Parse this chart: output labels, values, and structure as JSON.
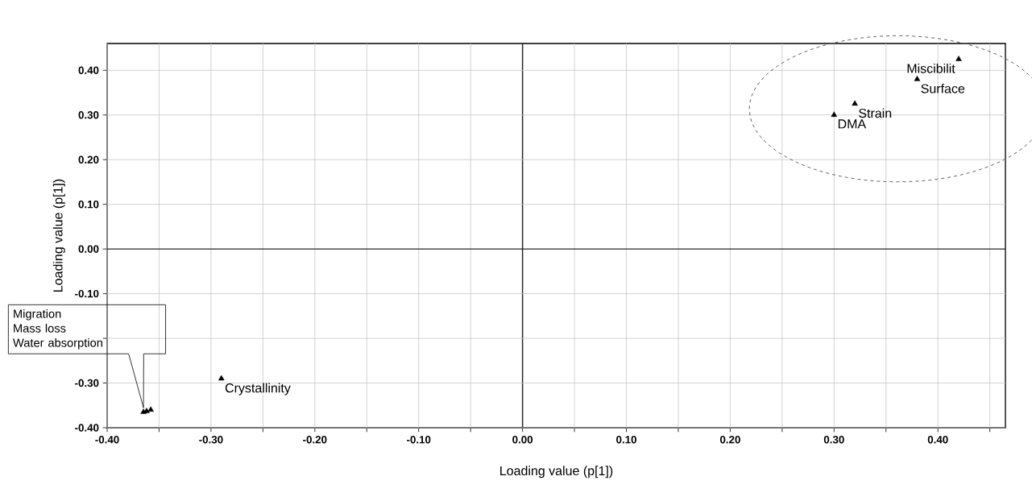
{
  "chart_data": {
    "type": "scatter",
    "xlabel": "Loading value (p[1])",
    "ylabel": "Loading value (p[1])",
    "xlim": [
      -0.4,
      0.465
    ],
    "ylim": [
      -0.4,
      0.46
    ],
    "xticks": [
      {
        "value": -0.4,
        "label": "-0.40"
      },
      {
        "value": -0.35,
        "label": null
      },
      {
        "value": -0.3,
        "label": "-0.30"
      },
      {
        "value": -0.25,
        "label": null
      },
      {
        "value": -0.2,
        "label": "-0.20"
      },
      {
        "value": -0.15,
        "label": null
      },
      {
        "value": -0.1,
        "label": "-0.10"
      },
      {
        "value": -0.05,
        "label": null
      },
      {
        "value": 0,
        "label": "0.00"
      },
      {
        "value": 0.05,
        "label": null
      },
      {
        "value": 0.1,
        "label": "0.10"
      },
      {
        "value": 0.15,
        "label": null
      },
      {
        "value": 0.2,
        "label": "0.20"
      },
      {
        "value": 0.25,
        "label": null
      },
      {
        "value": 0.3,
        "label": "0.30"
      },
      {
        "value": 0.35,
        "label": null
      },
      {
        "value": 0.4,
        "label": "0.40"
      },
      {
        "value": 0.45,
        "label": null
      }
    ],
    "yticks": [
      {
        "value": -0.4,
        "label": "-0.40"
      },
      {
        "value": -0.3,
        "label": "-0.30"
      },
      {
        "value": -0.2,
        "label": null
      },
      {
        "value": -0.1,
        "label": "-0.10"
      },
      {
        "value": 0,
        "label": "0.00"
      },
      {
        "value": 0.1,
        "label": "0.10"
      },
      {
        "value": 0.2,
        "label": "0.20"
      },
      {
        "value": 0.3,
        "label": "0.30"
      },
      {
        "value": 0.4,
        "label": "0.40"
      }
    ],
    "grid": true,
    "marker": "triangle",
    "series": [
      {
        "name": "Miscibilit",
        "color": "#000000",
        "x": [
          0.42
        ],
        "values": [
          0.425
        ]
      },
      {
        "name": "Surface",
        "color": "#000000",
        "x": [
          0.38
        ],
        "values": [
          0.38
        ]
      },
      {
        "name": "Strain",
        "color": "#000000",
        "x": [
          0.32
        ],
        "values": [
          0.325
        ]
      },
      {
        "name": "DMA",
        "color": "#000000",
        "x": [
          0.3
        ],
        "values": [
          0.3
        ]
      },
      {
        "name": "Crystallinity",
        "color": "#000000",
        "x": [
          -0.29
        ],
        "values": [
          -0.29
        ]
      },
      {
        "color": "#000000",
        "x": [
          -0.365,
          -0.362,
          -0.358
        ],
        "values": [
          -0.365,
          -0.363,
          -0.36
        ]
      }
    ],
    "annotations": [
      "Migration",
      "Mass loss",
      "Water absorption"
    ]
  }
}
